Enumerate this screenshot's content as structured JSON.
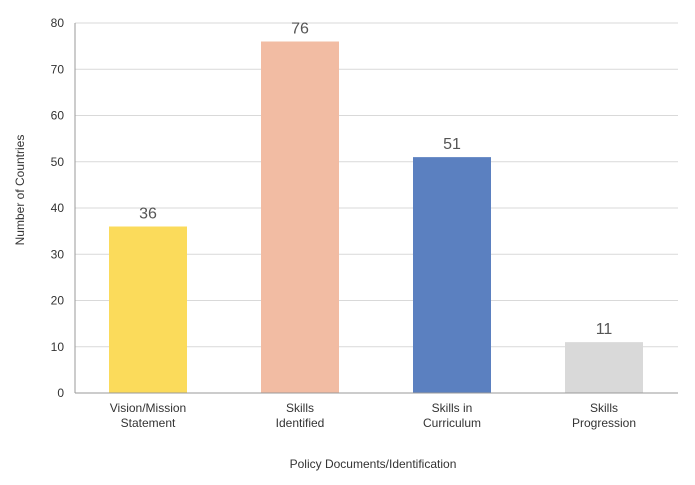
{
  "chart_data": {
    "type": "bar",
    "title": "",
    "xlabel": "Policy Documents/Identification",
    "ylabel": "Number of Countries",
    "ylim": [
      0,
      80
    ],
    "yticks": [
      0,
      10,
      20,
      30,
      40,
      50,
      60,
      70,
      80
    ],
    "grid": true,
    "legend": "none",
    "categories": [
      [
        "Vision/Mission",
        "Statement"
      ],
      [
        "Skills",
        "Identified"
      ],
      [
        "Skills in",
        "Curriculum"
      ],
      [
        "Skills",
        "Progression"
      ]
    ],
    "values": [
      36,
      76,
      51,
      11
    ],
    "data_labels": [
      "36",
      "76",
      "51",
      "11"
    ],
    "colors": [
      "#fbdb5b",
      "#f2bca3",
      "#5b80c0",
      "#d9d9d9"
    ],
    "gridline_color": "#d9d9d9",
    "axis_color": "#999999"
  }
}
